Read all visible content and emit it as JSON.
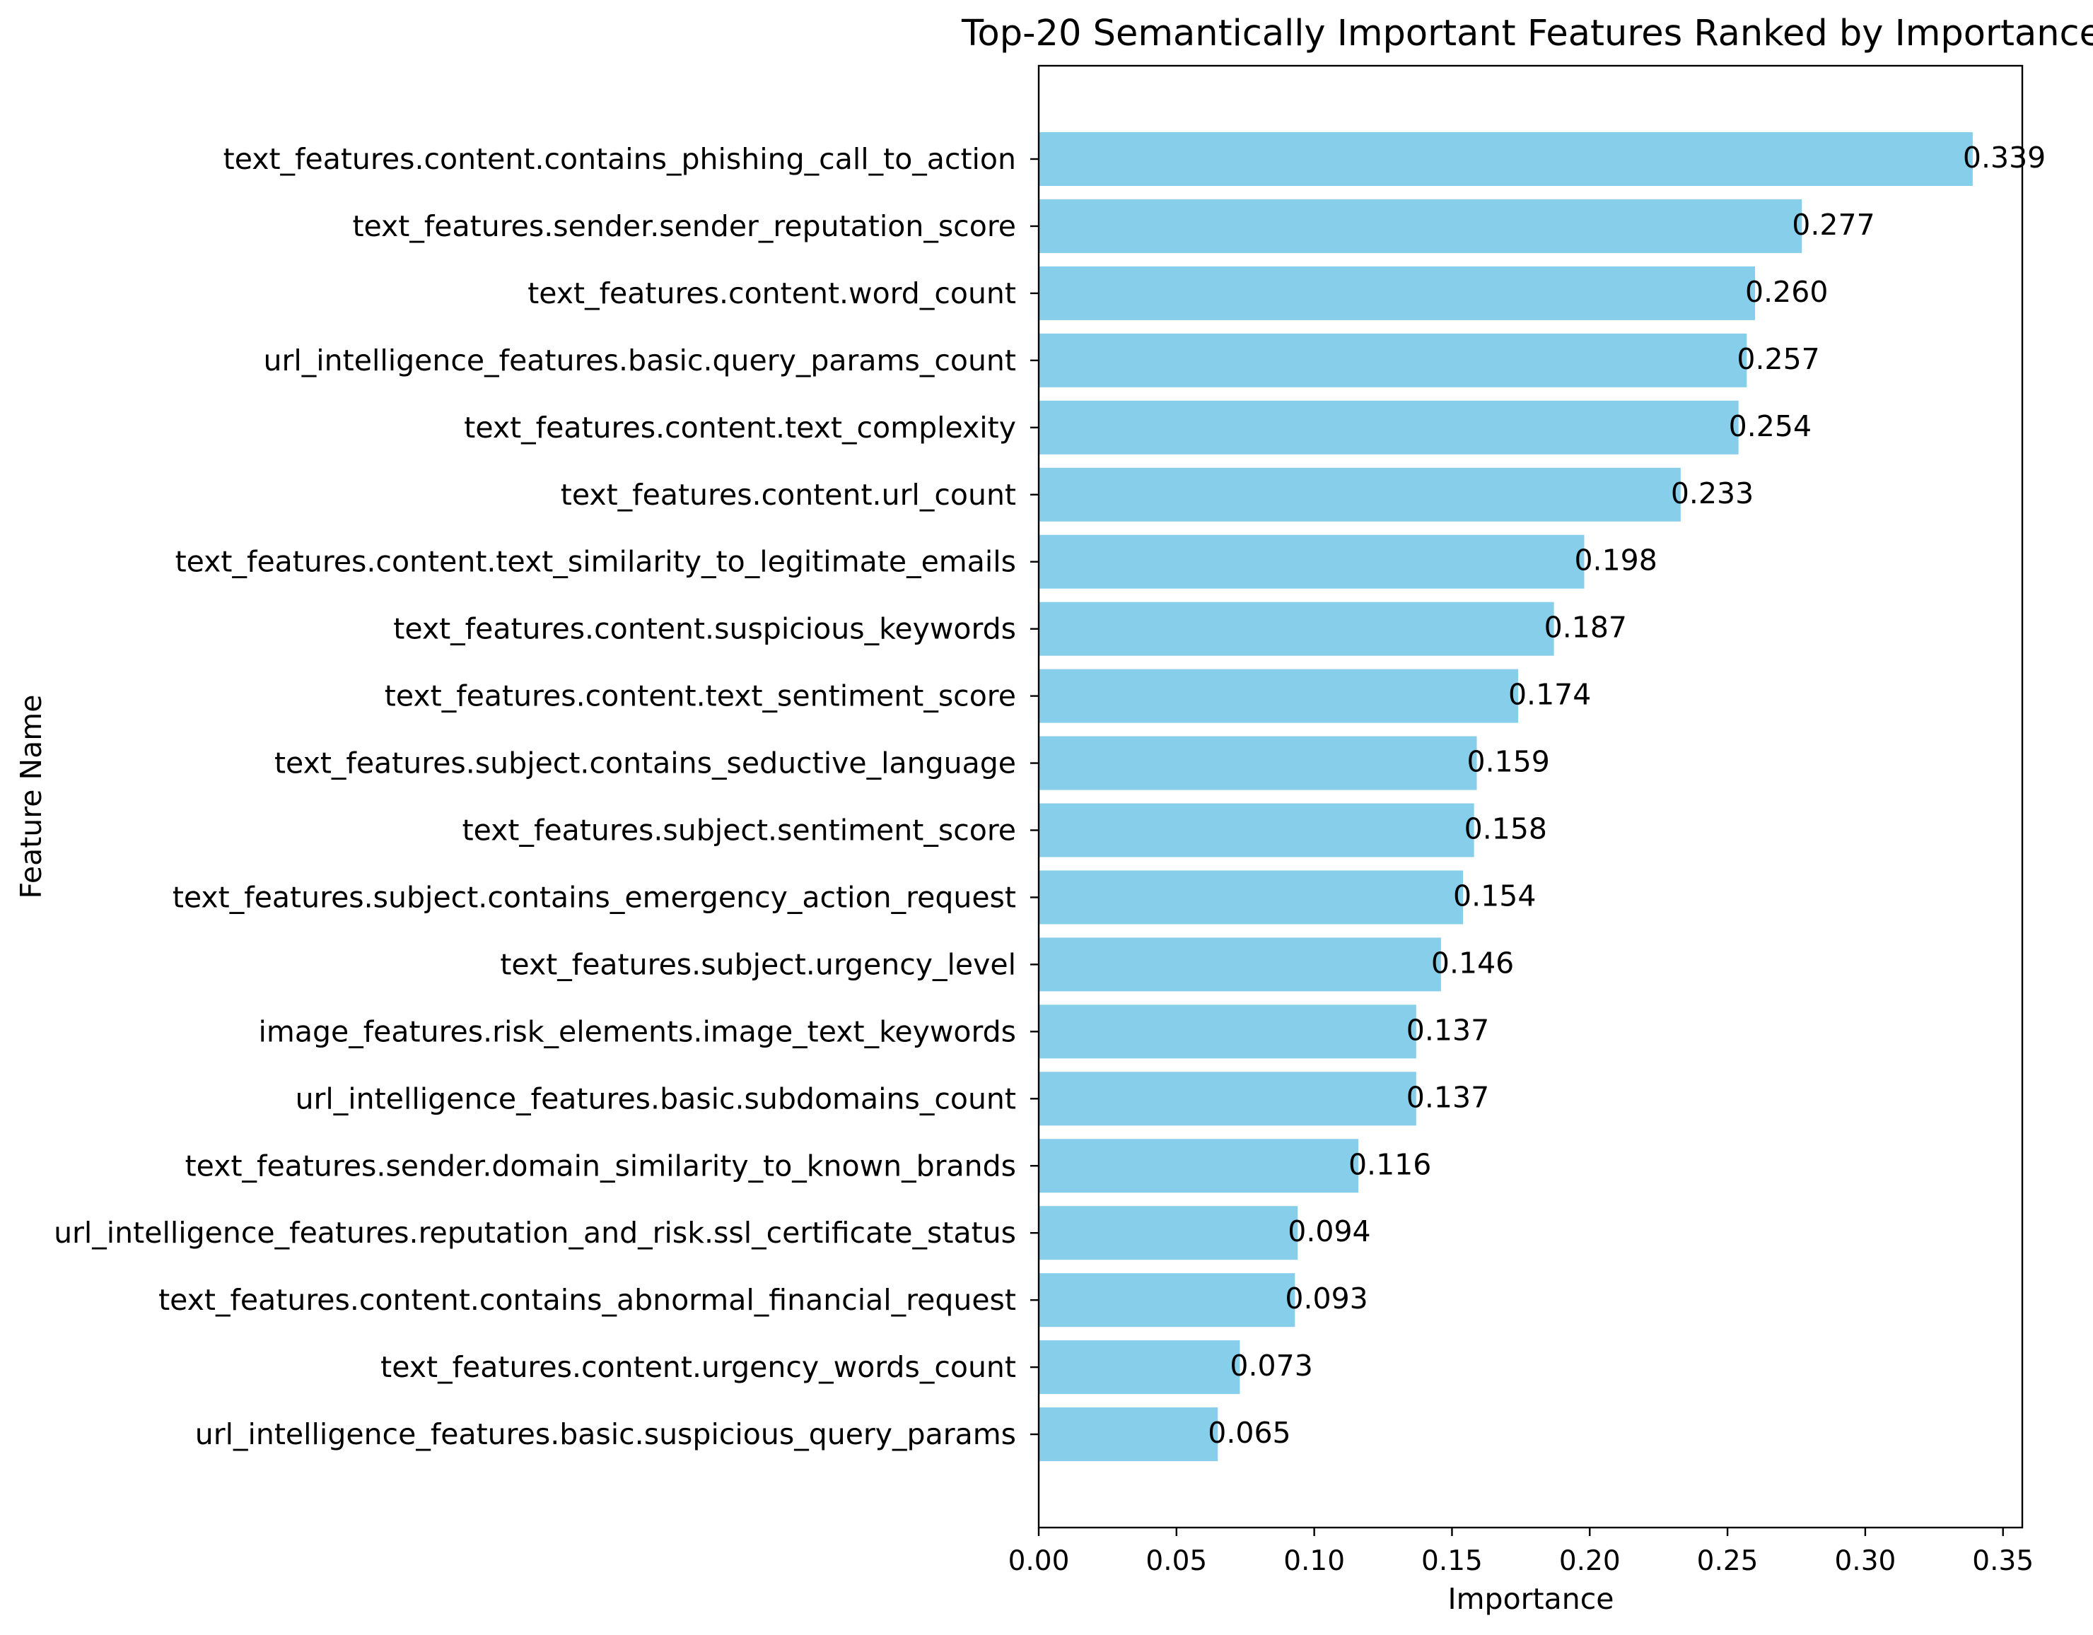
{
  "chart_data": {
    "type": "bar",
    "orientation": "horizontal",
    "title": "Top-20 Semantically Important Features Ranked by Importance",
    "xlabel": "Importance",
    "ylabel": "Feature Name",
    "xlim": [
      0,
      0.357
    ],
    "xticks": [
      "0.00",
      "0.05",
      "0.10",
      "0.15",
      "0.20",
      "0.25",
      "0.30",
      "0.35"
    ],
    "xtick_values": [
      0,
      0.05,
      0.1,
      0.15,
      0.2,
      0.25,
      0.3,
      0.35
    ],
    "grid": false,
    "bar_color": "#87CEEB",
    "categories": [
      "text_features.content.contains_phishing_call_to_action",
      "text_features.sender.sender_reputation_score",
      "text_features.content.word_count",
      "url_intelligence_features.basic.query_params_count",
      "text_features.content.text_complexity",
      "text_features.content.url_count",
      "text_features.content.text_similarity_to_legitimate_emails",
      "text_features.content.suspicious_keywords",
      "text_features.content.text_sentiment_score",
      "text_features.subject.contains_seductive_language",
      "text_features.subject.sentiment_score",
      "text_features.subject.contains_emergency_action_request",
      "text_features.subject.urgency_level",
      "image_features.risk_elements.image_text_keywords",
      "url_intelligence_features.basic.subdomains_count",
      "text_features.sender.domain_similarity_to_known_brands",
      "url_intelligence_features.reputation_and_risk.ssl_certificate_status",
      "text_features.content.contains_abnormal_financial_request",
      "text_features.content.urgency_words_count",
      "url_intelligence_features.basic.suspicious_query_params"
    ],
    "values": [
      0.339,
      0.277,
      0.26,
      0.257,
      0.254,
      0.233,
      0.198,
      0.187,
      0.174,
      0.159,
      0.158,
      0.154,
      0.146,
      0.137,
      0.137,
      0.116,
      0.094,
      0.093,
      0.073,
      0.065
    ],
    "value_labels": [
      "0.339",
      "0.277",
      "0.260",
      "0.257",
      "0.254",
      "0.233",
      "0.198",
      "0.187",
      "0.174",
      "0.159",
      "0.158",
      "0.154",
      "0.146",
      "0.137",
      "0.137",
      "0.116",
      "0.094",
      "0.093",
      "0.073",
      "0.065"
    ]
  }
}
